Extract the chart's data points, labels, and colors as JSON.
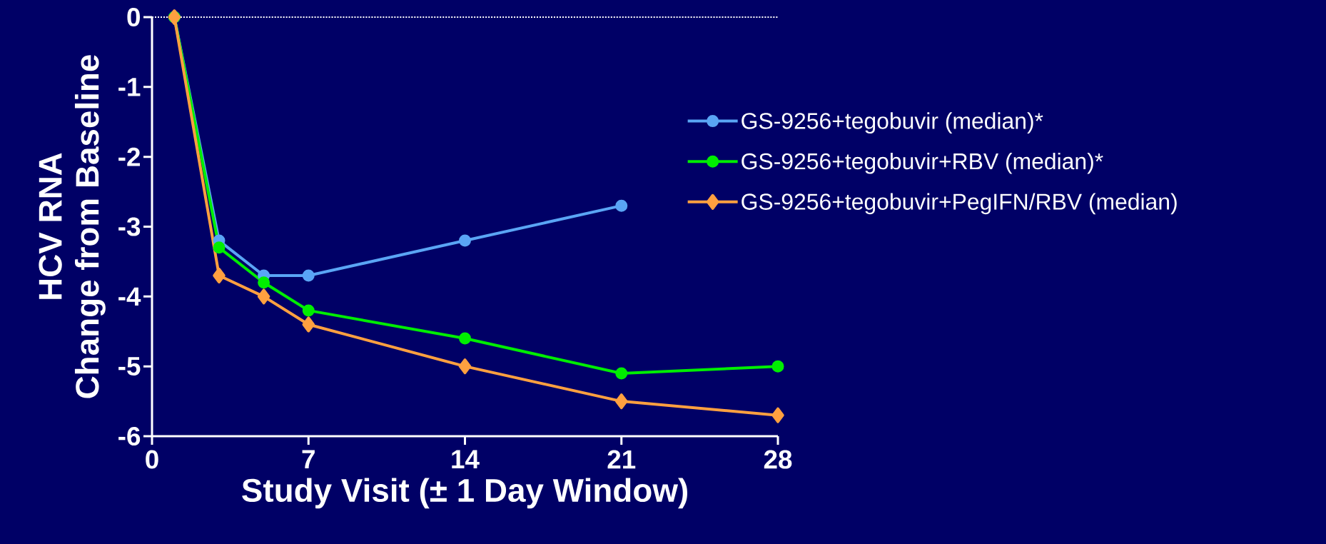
{
  "chart_data": {
    "type": "line",
    "xlabel": "Study Visit (± 1 Day Window)",
    "ylabel": "HCV RNA Change from Baseline",
    "xlim": [
      0,
      28
    ],
    "ylim": [
      -6,
      0
    ],
    "xticks": [
      0,
      7,
      14,
      21,
      28
    ],
    "yticks": [
      -6,
      -5,
      -4,
      -3,
      -2,
      -1,
      0
    ],
    "grid": false,
    "legend": "top right",
    "line_style": "solid",
    "ref_lines": [
      {
        "axis": "y",
        "value": 0,
        "color": "#ffffff",
        "line_style": "dotted"
      }
    ],
    "series": [
      {
        "name": "GS-9256+tegobuvir (median)*",
        "color": "#5aa5f5",
        "marker": "circle",
        "x": [
          1,
          3,
          5,
          7,
          14,
          21
        ],
        "values": [
          0,
          -3.2,
          -3.7,
          -3.7,
          -3.2,
          -2.7
        ]
      },
      {
        "name": "GS-9256+tegobuvir+RBV (median)*",
        "color": "#00ee00",
        "marker": "circle",
        "x": [
          1,
          3,
          5,
          7,
          14,
          21,
          28
        ],
        "values": [
          0,
          -3.3,
          -3.8,
          -4.2,
          -4.6,
          -5.1,
          -5.0
        ]
      },
      {
        "name": "GS-9256+tegobuvir+PegIFN/RBV (median)",
        "color": "#ffa040",
        "marker": "diamond",
        "x": [
          1,
          3,
          5,
          7,
          14,
          21,
          28
        ],
        "values": [
          0,
          -3.7,
          -4.0,
          -4.4,
          -5.0,
          -5.5,
          -5.7
        ]
      }
    ]
  }
}
